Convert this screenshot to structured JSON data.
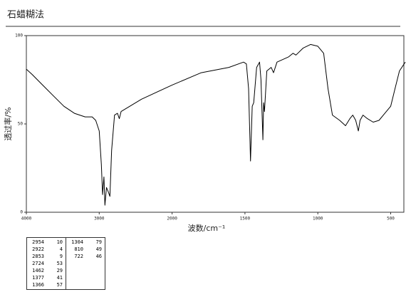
{
  "chart_data": {
    "type": "line",
    "title": "石蜡糊法",
    "x_label": "波数/cm⁻¹",
    "y_label": "透过率/%",
    "x": [
      4000,
      3920,
      3777,
      3631,
      3485,
      3340,
      3194,
      3097,
      3048,
      3000,
      2971,
      2954,
      2935,
      2922,
      2900,
      2880,
      2853,
      2830,
      2790,
      2750,
      2724,
      2700,
      2420,
      2000,
      1800,
      1610,
      1510,
      1490,
      1475,
      1462,
      1450,
      1440,
      1420,
      1400,
      1390,
      1377,
      1372,
      1366,
      1350,
      1320,
      1304,
      1280,
      1200,
      1170,
      1150,
      1100,
      1050,
      1000,
      960,
      930,
      900,
      850,
      810,
      780,
      760,
      740,
      722,
      710,
      690,
      660,
      620,
      580,
      540,
      500,
      470,
      440,
      400
    ],
    "series": [
      {
        "name": "spectrum",
        "color": "#000000",
        "values": [
          81,
          78,
          72,
          66,
          60,
          56,
          54,
          54,
          52,
          46,
          27,
          10,
          20,
          4,
          14,
          12,
          9,
          35,
          55,
          56,
          53,
          57,
          64,
          72,
          79,
          82,
          85,
          84,
          70,
          29,
          60,
          62,
          82,
          85,
          75,
          41,
          62,
          57,
          80,
          82,
          79,
          85,
          88,
          90,
          89,
          93,
          95,
          94,
          90,
          70,
          55,
          52,
          49,
          53,
          55,
          52,
          46,
          52,
          55,
          53,
          51,
          52,
          56,
          60,
          70,
          80,
          85
        ]
      }
    ],
    "xlim": [
      4000,
      400
    ],
    "ylim": [
      0,
      100
    ],
    "xticks": [
      4000,
      3000,
      2000,
      1500,
      1000,
      500
    ],
    "yticks": [
      0,
      50,
      100
    ]
  },
  "peak_table": {
    "rows": [
      [
        2954,
        10
      ],
      [
        2922,
        4
      ],
      [
        2853,
        9
      ],
      [
        2724,
        53
      ],
      [
        1462,
        29
      ],
      [
        1377,
        41
      ],
      [
        1366,
        57
      ],
      [
        1304,
        79
      ],
      [
        810,
        49
      ],
      [
        722,
        46
      ]
    ]
  }
}
